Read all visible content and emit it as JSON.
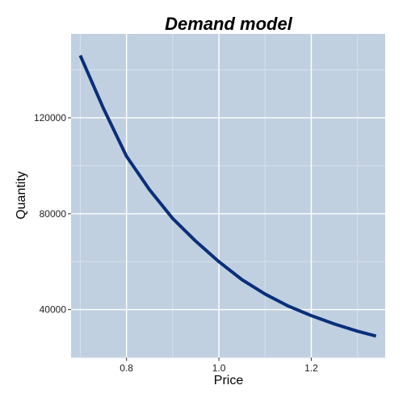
{
  "chart_data": {
    "type": "line",
    "title": "Demand model",
    "xlabel": "Price",
    "ylabel": "Quantity",
    "xlim": [
      0.68,
      1.36
    ],
    "ylim": [
      20000,
      155000
    ],
    "x_ticks": [
      0.8,
      1.0,
      1.2
    ],
    "x_tick_labels": [
      "0.8",
      "1.0",
      "1.2"
    ],
    "y_ticks": [
      40000,
      80000,
      120000
    ],
    "y_tick_labels": [
      "40000",
      "80000",
      "120000"
    ],
    "grid": true,
    "series": [
      {
        "x": [
          0.7,
          0.75,
          0.8,
          0.85,
          0.9,
          0.95,
          1.0,
          1.05,
          1.1,
          1.15,
          1.2,
          1.25,
          1.3,
          1.34
        ],
        "y": [
          146000,
          124000,
          104000,
          90000,
          78000,
          68500,
          60000,
          52500,
          46500,
          41500,
          37500,
          34000,
          31000,
          29000
        ],
        "color": "#0a2f7a"
      }
    ]
  },
  "colors": {
    "panel_background": "#c1d0e0",
    "grid_major": "#ffffff",
    "grid_minor": "#d6e1ec",
    "line": "#0a2f7a"
  }
}
